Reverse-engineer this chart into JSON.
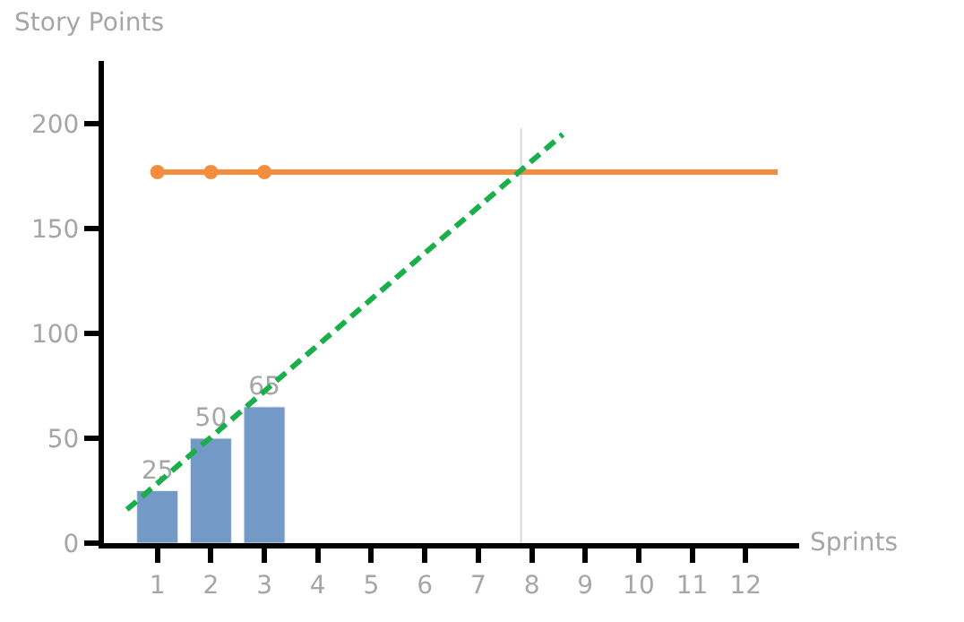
{
  "chart_data": {
    "type": "bar",
    "xlabel": "Sprints",
    "ylabel": "Story Points",
    "xlim": [
      0,
      13
    ],
    "ylim": [
      0,
      230
    ],
    "xticks": [
      1,
      2,
      3,
      4,
      5,
      6,
      7,
      8,
      9,
      10,
      11,
      12
    ],
    "yticks": [
      0,
      50,
      100,
      150,
      200
    ],
    "grid": false,
    "series": [
      {
        "color": "#7399c6",
        "x": [
          1,
          2,
          3
        ],
        "values": [
          25,
          50,
          65
        ],
        "value_labels": [
          "25",
          "50",
          "65"
        ]
      },
      {
        "type": "line",
        "color": "#f58d3e",
        "marker": "circle",
        "x": [
          1,
          2,
          3
        ],
        "values": [
          177,
          177,
          177
        ]
      },
      {
        "type": "line",
        "color": "#f58d3e",
        "marker": "none",
        "x": [
          3,
          12.6
        ],
        "values": [
          177,
          177
        ]
      },
      {
        "type": "line",
        "color": "#1aaf4b",
        "marker": "none",
        "line_style": "dashed",
        "x": [
          0.43,
          8.58
        ],
        "values": [
          16,
          195
        ]
      }
    ],
    "ref_lines": [
      {
        "axis": "x",
        "value": 7.8,
        "label": null,
        "color": "#d9d9d9"
      }
    ]
  }
}
